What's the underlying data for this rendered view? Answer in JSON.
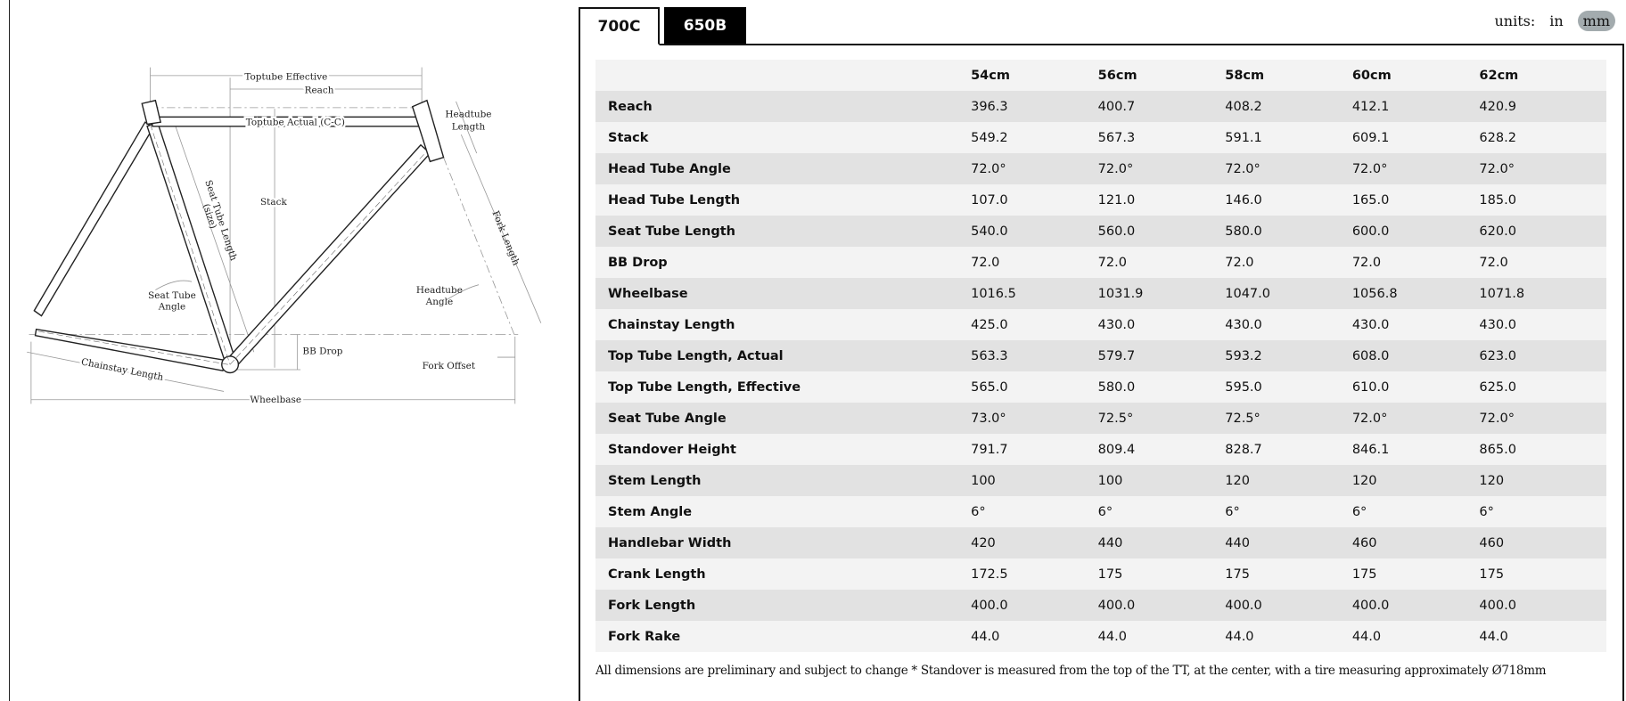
{
  "diagram": {
    "labels": {
      "toptube_effective": "Toptube Effective",
      "reach": "Reach",
      "toptube_actual": "Toptube Actual (C-C)",
      "headtube_length_1": "Headtube",
      "headtube_length_2": "Length",
      "stack": "Stack",
      "seat_tube_length": "Seat Tube Length",
      "seat_tube_size": "(size)",
      "fork_length": "Fork Length",
      "headtube_angle_1": "Headtube",
      "headtube_angle_2": "Angle",
      "seat_tube_angle_1": "Seat Tube",
      "seat_tube_angle_2": "Angle",
      "bb_drop": "BB Drop",
      "fork_offset": "Fork Offset",
      "chainstay_length": "Chainstay Length",
      "wheelbase": "Wheelbase"
    }
  },
  "tabs": [
    {
      "label": "700C",
      "active": true
    },
    {
      "label": "650B",
      "active": false
    }
  ],
  "units": {
    "label": "units:",
    "options": [
      "in",
      "mm"
    ],
    "selected": "mm",
    "selected_color": "#a3abae"
  },
  "table": {
    "columns": [
      "54cm",
      "56cm",
      "58cm",
      "60cm",
      "62cm"
    ],
    "rows": [
      {
        "label": "Reach",
        "values": [
          "396.3",
          "400.7",
          "408.2",
          "412.1",
          "420.9"
        ]
      },
      {
        "label": "Stack",
        "values": [
          "549.2",
          "567.3",
          "591.1",
          "609.1",
          "628.2"
        ]
      },
      {
        "label": "Head Tube Angle",
        "values": [
          "72.0°",
          "72.0°",
          "72.0°",
          "72.0°",
          "72.0°"
        ]
      },
      {
        "label": "Head Tube Length",
        "values": [
          "107.0",
          "121.0",
          "146.0",
          "165.0",
          "185.0"
        ]
      },
      {
        "label": "Seat Tube Length",
        "values": [
          "540.0",
          "560.0",
          "580.0",
          "600.0",
          "620.0"
        ]
      },
      {
        "label": "BB Drop",
        "values": [
          "72.0",
          "72.0",
          "72.0",
          "72.0",
          "72.0"
        ]
      },
      {
        "label": "Wheelbase",
        "values": [
          "1016.5",
          "1031.9",
          "1047.0",
          "1056.8",
          "1071.8"
        ]
      },
      {
        "label": "Chainstay Length",
        "values": [
          "425.0",
          "430.0",
          "430.0",
          "430.0",
          "430.0"
        ]
      },
      {
        "label": "Top Tube Length, Actual",
        "values": [
          "563.3",
          "579.7",
          "593.2",
          "608.0",
          "623.0"
        ]
      },
      {
        "label": "Top Tube Length, Effective",
        "values": [
          "565.0",
          "580.0",
          "595.0",
          "610.0",
          "625.0"
        ]
      },
      {
        "label": "Seat Tube Angle",
        "values": [
          "73.0°",
          "72.5°",
          "72.5°",
          "72.0°",
          "72.0°"
        ]
      },
      {
        "label": "Standover Height",
        "values": [
          "791.7",
          "809.4",
          "828.7",
          "846.1",
          "865.0"
        ]
      },
      {
        "label": "Stem Length",
        "values": [
          "100",
          "100",
          "120",
          "120",
          "120"
        ]
      },
      {
        "label": "Stem Angle",
        "values": [
          "6°",
          "6°",
          "6°",
          "6°",
          "6°"
        ]
      },
      {
        "label": "Handlebar Width",
        "values": [
          "420",
          "440",
          "440",
          "460",
          "460"
        ]
      },
      {
        "label": "Crank Length",
        "values": [
          "172.5",
          "175",
          "175",
          "175",
          "175"
        ]
      },
      {
        "label": "Fork Length",
        "values": [
          "400.0",
          "400.0",
          "400.0",
          "400.0",
          "400.0"
        ]
      },
      {
        "label": "Fork Rake",
        "values": [
          "44.0",
          "44.0",
          "44.0",
          "44.0",
          "44.0"
        ]
      }
    ]
  },
  "footnote": "All dimensions are preliminary and subject to change * Standover is measured from the top of the TT, at the center, with a tire measuring approximately Ø718mm"
}
